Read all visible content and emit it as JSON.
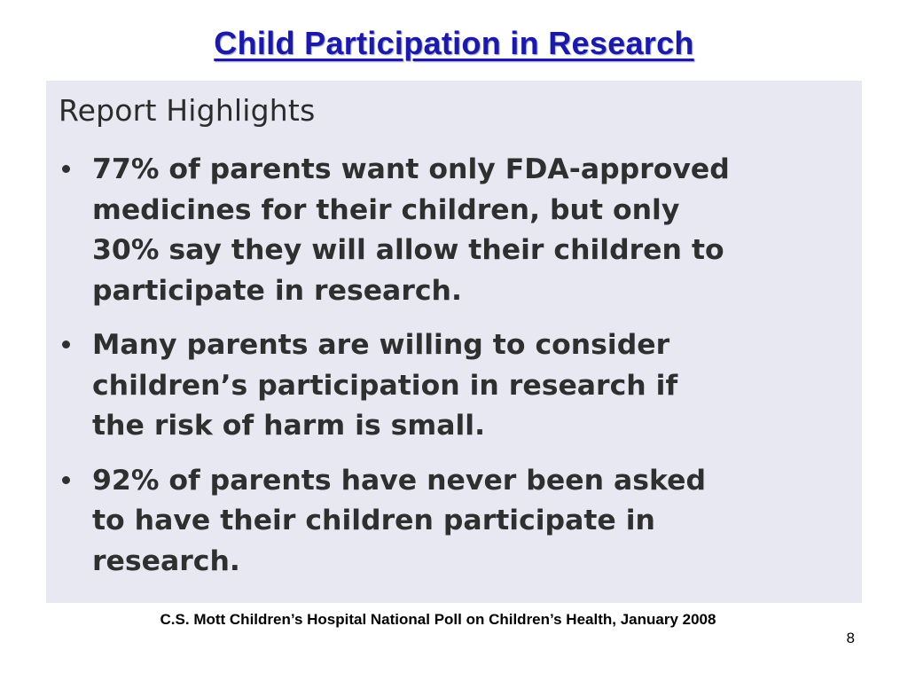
{
  "slide": {
    "title": "Child Participation in Research",
    "page_number": "8"
  },
  "panel": {
    "heading": "Report Highlights",
    "bullets": [
      {
        "lines": [
          "77% of parents want only FDA-approved",
          "medicines for their children, but only",
          "30% say they will allow their children to",
          "participate in research."
        ]
      },
      {
        "lines": [
          "Many parents are willing to consider",
          "children’s participation in research if",
          "the risk of harm is small."
        ]
      },
      {
        "lines": [
          "92% of parents have never been asked",
          "to have their children participate in",
          "research."
        ]
      }
    ]
  },
  "footer": {
    "source": "C.S. Mott Children’s Hospital National Poll on Children’s Health, January 2008"
  }
}
